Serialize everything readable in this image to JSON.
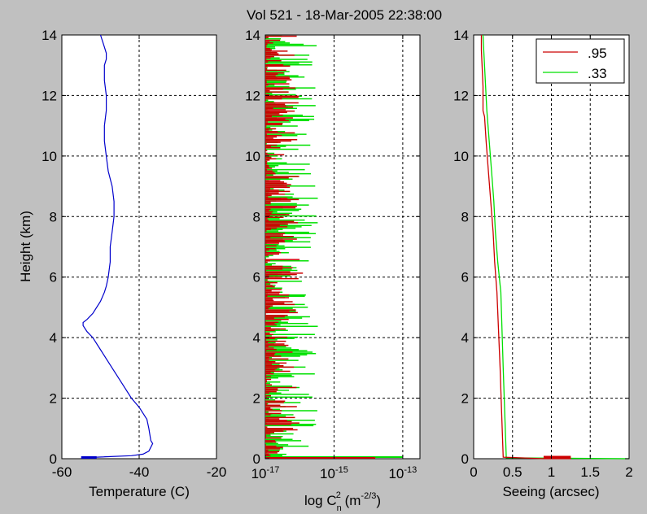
{
  "title": "Vol 521 - 18-Mar-2005 22:38:00",
  "colors": {
    "background": "#c0c0c0",
    "temperature": "#0000cc",
    "series_095": "#cc0000",
    "series_033": "#00e000"
  },
  "chart_data": [
    {
      "type": "line",
      "xlabel": "Temperature (C)",
      "ylabel": "Height (km)",
      "xlim": [
        -60,
        -20
      ],
      "ylim": [
        0,
        14
      ],
      "xticks": [
        "-60",
        "-40",
        "-20"
      ],
      "yticks": [
        "0",
        "2",
        "4",
        "6",
        "8",
        "10",
        "12",
        "14"
      ],
      "grid": true,
      "series": [
        {
          "color": "#0000cc",
          "x": [
            -55,
            -51,
            -42,
            -39,
            -37.5,
            -36.5,
            -37,
            -37.5,
            -38,
            -40,
            -42,
            -44,
            -46,
            -48,
            -50,
            -52,
            -53.5,
            -54.5,
            -54.5,
            -53.5,
            -52,
            -50,
            -49,
            -48.5,
            -48,
            -47.5,
            -47.5,
            -47,
            -46.5,
            -46.5,
            -47,
            -48,
            -48.5,
            -49,
            -49,
            -48.5,
            -48.5,
            -49,
            -49,
            -49,
            -48.5,
            -48.5,
            -49,
            -49.5,
            -50
          ],
          "y": [
            0.02,
            0.05,
            0.1,
            0.15,
            0.25,
            0.5,
            0.6,
            1.0,
            1.3,
            1.7,
            2.0,
            2.4,
            2.8,
            3.2,
            3.6,
            4.0,
            4.2,
            4.4,
            4.5,
            4.6,
            4.8,
            5.2,
            5.5,
            5.7,
            6.0,
            6.5,
            7.0,
            7.5,
            8.0,
            8.5,
            9.0,
            9.5,
            10.0,
            10.5,
            11.0,
            11.5,
            12.0,
            12.5,
            12.8,
            13.0,
            13.2,
            13.4,
            13.6,
            13.8,
            14.0
          ]
        }
      ]
    },
    {
      "type": "line",
      "xlabel": "log C_n^2 (m^-2/3)",
      "xlabel_parts": {
        "main": "log C",
        "sub": "n",
        "sup": "2",
        "unit_open": " (m",
        "unit_sup": "-2/3",
        "unit_close": ")"
      },
      "xlim": [
        -17,
        -12.5
      ],
      "ylim": [
        0,
        14
      ],
      "xtick_bases": [
        "10",
        "10",
        "10"
      ],
      "xtick_exps": [
        "-17",
        "-15",
        "-13"
      ],
      "yticks": [
        "0",
        "2",
        "4",
        "6",
        "8",
        "10",
        "12",
        "14"
      ],
      "grid": true,
      "series": [
        {
          "name": ".95",
          "color": "#cc0000",
          "profile": "spiky",
          "ground_value": -13.8
        },
        {
          "name": ".33",
          "color": "#00e000",
          "profile": "spiky",
          "ground_value": -13.0
        }
      ]
    },
    {
      "type": "line",
      "xlabel": "Seeing (arcsec)",
      "xlim": [
        0,
        2
      ],
      "ylim": [
        0,
        14
      ],
      "xticks": [
        "0",
        "0.5",
        "1",
        "1.5",
        "2"
      ],
      "yticks": [
        "0",
        "2",
        "4",
        "6",
        "8",
        "10",
        "12",
        "14"
      ],
      "grid": true,
      "legend": {
        "placement": "top-right",
        "entries": [
          {
            "label": ".95",
            "color": "#cc0000"
          },
          {
            "label": ".33",
            "color": "#00e000"
          }
        ]
      },
      "series": [
        {
          "name": ".95",
          "color": "#cc0000",
          "x": [
            1.25,
            0.9,
            0.38,
            0.36,
            0.34,
            0.3,
            0.27,
            0.25,
            0.22,
            0.19,
            0.16,
            0.14,
            0.12,
            0.12,
            0.1,
            0.1
          ],
          "y": [
            0.0,
            0.0,
            0.05,
            1.5,
            3.0,
            5.5,
            6.5,
            7.5,
            8.5,
            9.5,
            10.5,
            11.3,
            11.5,
            12.3,
            13.5,
            14.0
          ]
        },
        {
          "name": ".33",
          "color": "#00e000",
          "x": [
            2.0,
            0.42,
            0.4,
            0.38,
            0.35,
            0.31,
            0.28,
            0.26,
            0.23,
            0.2,
            0.17,
            0.15,
            0.13,
            0.12
          ],
          "y": [
            0.0,
            0.03,
            1.5,
            3.0,
            5.5,
            6.5,
            7.5,
            8.5,
            9.5,
            10.5,
            11.5,
            12.5,
            13.5,
            14.0
          ]
        }
      ]
    }
  ]
}
